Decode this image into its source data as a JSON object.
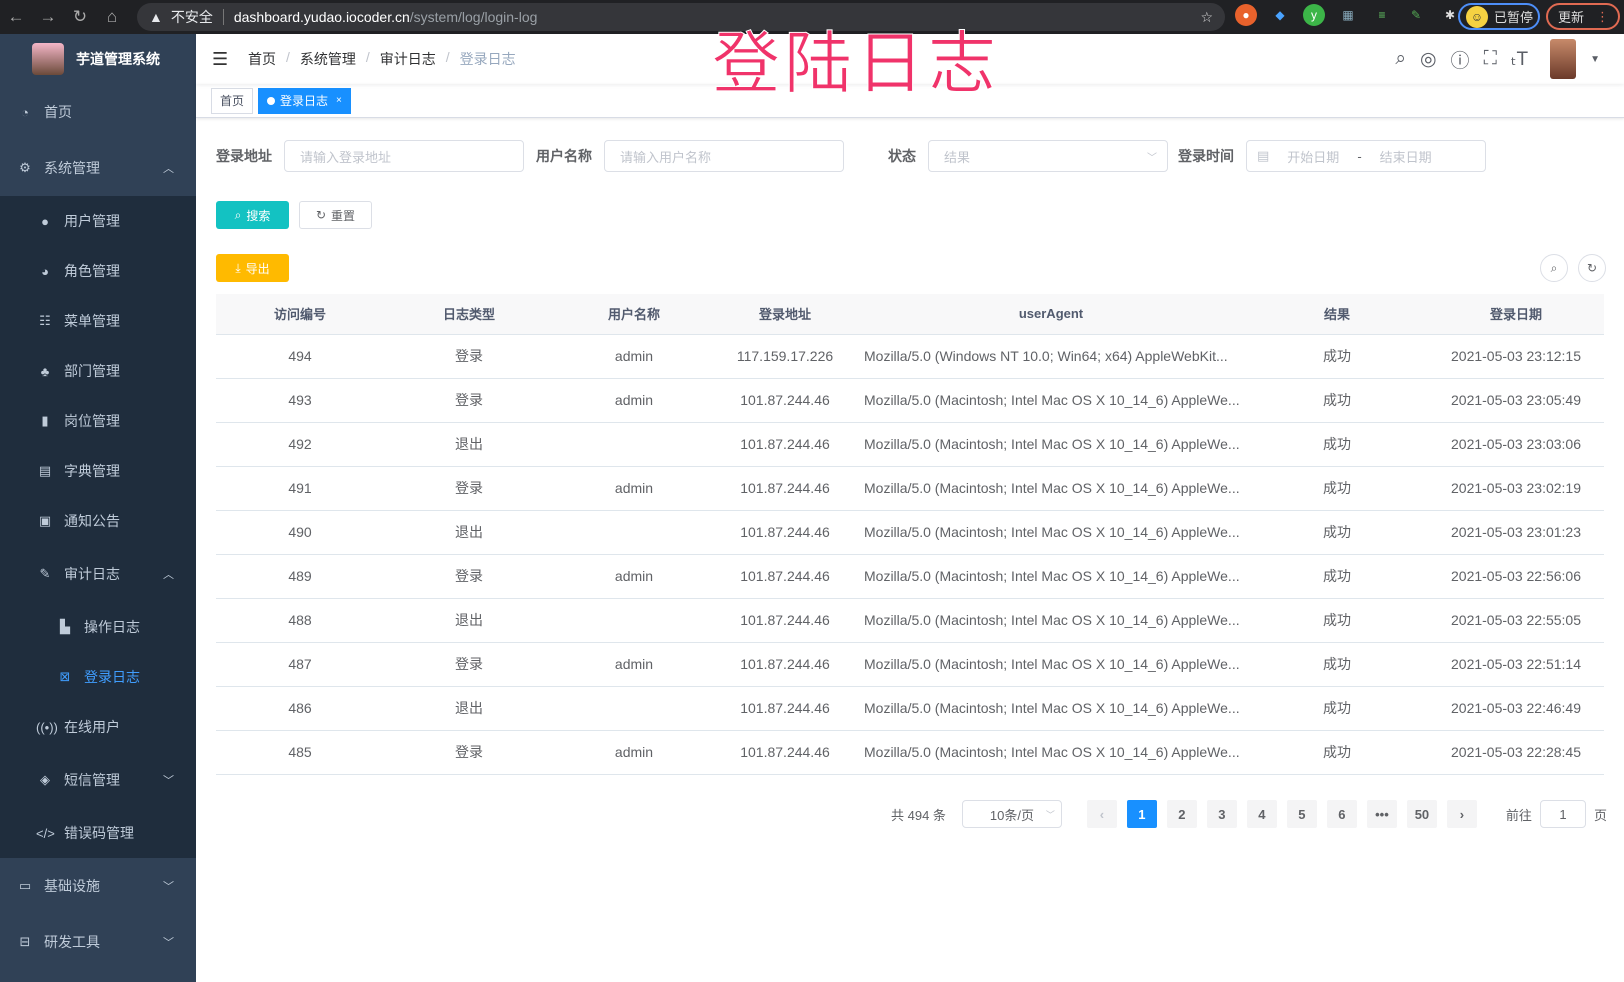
{
  "browser": {
    "warning": "不安全",
    "host": "dashboard.yudao.iocoder.cn",
    "path": "/system/log/login-log",
    "paused": "已暂停",
    "update": "更新"
  },
  "overlay_title": "登陆日志",
  "sidebar": {
    "title": "芋道管理系统",
    "items": [
      {
        "label": "首页",
        "icon": "dashboard-icon"
      },
      {
        "label": "系统管理",
        "icon": "gear-icon",
        "expanded": true,
        "children": [
          {
            "label": "用户管理",
            "icon": "user-icon"
          },
          {
            "label": "角色管理",
            "icon": "peoples-icon"
          },
          {
            "label": "菜单管理",
            "icon": "tree-table-icon"
          },
          {
            "label": "部门管理",
            "icon": "tree-icon"
          },
          {
            "label": "岗位管理",
            "icon": "post-icon"
          },
          {
            "label": "字典管理",
            "icon": "dict-icon"
          },
          {
            "label": "通知公告",
            "icon": "message-icon"
          },
          {
            "label": "审计日志",
            "icon": "log-icon",
            "expanded": true,
            "children": [
              {
                "label": "操作日志",
                "icon": "form-icon"
              },
              {
                "label": "登录日志",
                "icon": "logininfor-icon",
                "active": true
              }
            ]
          },
          {
            "label": "在线用户",
            "icon": "online-icon"
          },
          {
            "label": "短信管理",
            "icon": "validCode-icon",
            "collapsed": true
          },
          {
            "label": "错误码管理",
            "icon": "code-icon"
          }
        ]
      },
      {
        "label": "基础设施",
        "icon": "monitor-icon"
      },
      {
        "label": "研发工具",
        "icon": "tool-icon"
      }
    ]
  },
  "breadcrumb": [
    "首页",
    "系统管理",
    "审计日志",
    "登录日志"
  ],
  "tags": [
    {
      "label": "首页"
    },
    {
      "label": "登录日志",
      "active": true
    }
  ],
  "filters": {
    "address_label": "登录地址",
    "address_placeholder": "请输入登录地址",
    "username_label": "用户名称",
    "username_placeholder": "请输入用户名称",
    "status_label": "状态",
    "status_placeholder": "结果",
    "time_label": "登录时间",
    "start_placeholder": "开始日期",
    "range_sep": "-",
    "end_placeholder": "结束日期"
  },
  "buttons": {
    "search": "搜索",
    "reset": "重置",
    "export": "导出"
  },
  "table": {
    "columns": [
      "访问编号",
      "日志类型",
      "用户名称",
      "登录地址",
      "userAgent",
      "结果",
      "登录日期"
    ],
    "rows": [
      [
        "494",
        "登录",
        "admin",
        "117.159.17.226",
        "Mozilla/5.0 (Windows NT 10.0; Win64; x64) AppleWebKit...",
        "成功",
        "2021-05-03 23:12:15"
      ],
      [
        "493",
        "登录",
        "admin",
        "101.87.244.46",
        "Mozilla/5.0 (Macintosh; Intel Mac OS X 10_14_6) AppleWe...",
        "成功",
        "2021-05-03 23:05:49"
      ],
      [
        "492",
        "退出",
        "",
        "101.87.244.46",
        "Mozilla/5.0 (Macintosh; Intel Mac OS X 10_14_6) AppleWe...",
        "成功",
        "2021-05-03 23:03:06"
      ],
      [
        "491",
        "登录",
        "admin",
        "101.87.244.46",
        "Mozilla/5.0 (Macintosh; Intel Mac OS X 10_14_6) AppleWe...",
        "成功",
        "2021-05-03 23:02:19"
      ],
      [
        "490",
        "退出",
        "",
        "101.87.244.46",
        "Mozilla/5.0 (Macintosh; Intel Mac OS X 10_14_6) AppleWe...",
        "成功",
        "2021-05-03 23:01:23"
      ],
      [
        "489",
        "登录",
        "admin",
        "101.87.244.46",
        "Mozilla/5.0 (Macintosh; Intel Mac OS X 10_14_6) AppleWe...",
        "成功",
        "2021-05-03 22:56:06"
      ],
      [
        "488",
        "退出",
        "",
        "101.87.244.46",
        "Mozilla/5.0 (Macintosh; Intel Mac OS X 10_14_6) AppleWe...",
        "成功",
        "2021-05-03 22:55:05"
      ],
      [
        "487",
        "登录",
        "admin",
        "101.87.244.46",
        "Mozilla/5.0 (Macintosh; Intel Mac OS X 10_14_6) AppleWe...",
        "成功",
        "2021-05-03 22:51:14"
      ],
      [
        "486",
        "退出",
        "",
        "101.87.244.46",
        "Mozilla/5.0 (Macintosh; Intel Mac OS X 10_14_6) AppleWe...",
        "成功",
        "2021-05-03 22:46:49"
      ],
      [
        "485",
        "登录",
        "admin",
        "101.87.244.46",
        "Mozilla/5.0 (Macintosh; Intel Mac OS X 10_14_6) AppleWe...",
        "成功",
        "2021-05-03 22:28:45"
      ]
    ]
  },
  "pagination": {
    "total": "共 494 条",
    "page_size": "10条/页",
    "pages": [
      "1",
      "2",
      "3",
      "4",
      "5",
      "6",
      "•••",
      "50"
    ],
    "current": "1",
    "goto_label": "前往",
    "goto_value": "1",
    "goto_suffix": "页"
  },
  "colors": {
    "sidebar_bg": "#304156",
    "submenu_bg": "#1f2d3d",
    "primary": "#1890ff",
    "search_btn": "#13c2c2",
    "export_btn": "#ffba00",
    "overlay": "#f0336a"
  }
}
